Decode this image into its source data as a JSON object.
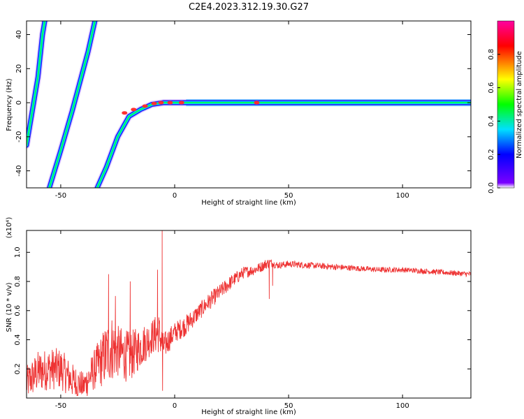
{
  "figure": {
    "title": "C2E4.2023.312.19.30.G27"
  },
  "chart_data": [
    {
      "type": "heatmap",
      "xlabel": "Height of straight line (km)",
      "ylabel": "Frequency (Hz)",
      "xlim": [
        -65,
        130
      ],
      "ylim": [
        -50,
        48
      ],
      "xticks": [
        "-50",
        "0",
        "50",
        "100"
      ],
      "yticks": [
        "-40",
        "-20",
        "0",
        "20",
        "40"
      ],
      "colorbar": {
        "label": "Normalized spectral amplitude",
        "ticks": [
          "0.0",
          "0.2",
          "0.4",
          "0.6",
          "0.8"
        ],
        "range": [
          0,
          1
        ],
        "colors": [
          "#ffffff",
          "#7a00ff",
          "#0000ff",
          "#00e0ff",
          "#00ff00",
          "#ffff00",
          "#ff0000",
          "#ff00a0"
        ]
      },
      "traces": [
        {
          "x": [
            -65,
            -60,
            -58,
            -57
          ],
          "y": [
            -25,
            15,
            40,
            48
          ]
        },
        {
          "x": [
            -55,
            -50,
            -45,
            -40,
            -38,
            -35
          ],
          "y": [
            -50,
            -28,
            -5,
            20,
            30,
            48
          ]
        },
        {
          "x": [
            -34,
            -30,
            -25,
            -20,
            -15,
            -10,
            -5,
            0,
            5,
            10,
            130
          ],
          "y": [
            -50,
            -38,
            -20,
            -8,
            -4,
            -1,
            0,
            0,
            0,
            0,
            0
          ]
        }
      ]
    },
    {
      "type": "line",
      "xlabel": "Height of straight line (km)",
      "ylabel": "SNR (10 * v/v)",
      "yscale_label": "(x10⁴)",
      "xlim": [
        -65,
        130
      ],
      "ylim": [
        0.0,
        1.15
      ],
      "xticks": [
        "-50",
        "0",
        "50",
        "100"
      ],
      "yticks": [
        "0.2",
        "0.4",
        "0.6",
        "0.8",
        "1.0"
      ],
      "series": [
        {
          "color": "#ee3333",
          "x": [
            -65,
            -60,
            -55,
            -50,
            -45,
            -40,
            -35,
            -30,
            -28,
            -25,
            -20,
            -15,
            -10,
            -7,
            -5,
            0,
            5,
            10,
            15,
            20,
            25,
            30,
            35,
            38,
            40,
            42,
            45,
            50,
            60,
            70,
            80,
            90,
            100,
            110,
            120,
            130
          ],
          "y": [
            0.1,
            0.18,
            0.2,
            0.2,
            0.12,
            0.08,
            0.2,
            0.3,
            0.35,
            0.32,
            0.28,
            0.35,
            0.42,
            0.45,
            0.35,
            0.45,
            0.5,
            0.58,
            0.66,
            0.73,
            0.8,
            0.86,
            0.88,
            0.9,
            0.92,
            0.93,
            0.91,
            0.92,
            0.91,
            0.9,
            0.89,
            0.88,
            0.88,
            0.87,
            0.86,
            0.85
          ],
          "noise": [
            0.1,
            0.12,
            0.12,
            0.12,
            0.1,
            0.08,
            0.12,
            0.18,
            0.2,
            0.15,
            0.15,
            0.12,
            0.1,
            0.12,
            0.08,
            0.06,
            0.06,
            0.05,
            0.05,
            0.045,
            0.04,
            0.035,
            0.03,
            0.03,
            0.03,
            0.025,
            0.02,
            0.02,
            0.018,
            0.018,
            0.016,
            0.016,
            0.015,
            0.015,
            0.015,
            0.015
          ],
          "spikes": [
            {
              "x": -29,
              "y": 0.85
            },
            {
              "x": -26,
              "y": 0.7
            },
            {
              "x": -19.5,
              "y": 0.8
            },
            {
              "x": -7.5,
              "y": 0.88
            },
            {
              "x": -5.5,
              "y": 1.15
            },
            {
              "x": -5.3,
              "y": 0.05
            },
            {
              "x": 41.5,
              "y": 0.68
            },
            {
              "x": 43,
              "y": 0.77
            }
          ]
        }
      ]
    }
  ]
}
